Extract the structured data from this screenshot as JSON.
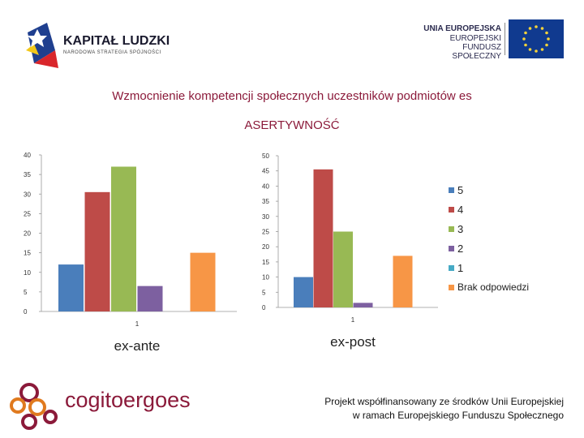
{
  "header": {
    "kapital_title": "KAPITAŁ LUDZKI",
    "kapital_sub": "NARODOWA STRATEGIA SPÓJNOŚCI",
    "ue_line1": "UNIA EUROPEJSKA",
    "ue_line2": "EUROPEJSKI",
    "ue_line3": "FUNDUSZ SPOŁECZNY"
  },
  "title": "Wzmocnienie kompetencji społecznych uczestników podmiotów es",
  "subtitle": "ASERTYWNOŚĆ",
  "chart_data": [
    {
      "type": "bar",
      "xlabel": "ex-ante",
      "categories": [
        "1"
      ],
      "ylim": [
        0,
        40
      ],
      "yticks": [
        0,
        5,
        10,
        15,
        20,
        25,
        30,
        35,
        40
      ],
      "series": [
        {
          "name": "5",
          "values": [
            12
          ],
          "color": "#4a7ebb"
        },
        {
          "name": "4",
          "values": [
            30.5
          ],
          "color": "#be4b48"
        },
        {
          "name": "3",
          "values": [
            37
          ],
          "color": "#98b954"
        },
        {
          "name": "2",
          "values": [
            6.5
          ],
          "color": "#7d60a0"
        },
        {
          "name": "1",
          "values": [
            0
          ],
          "color": "#46aac5"
        },
        {
          "name": "Brak odpowiedzi",
          "values": [
            15
          ],
          "color": "#f79646"
        }
      ]
    },
    {
      "type": "bar",
      "xlabel": "ex-post",
      "categories": [
        "1"
      ],
      "ylim": [
        0,
        50
      ],
      "yticks": [
        0,
        5,
        10,
        15,
        20,
        25,
        30,
        35,
        40,
        45,
        50
      ],
      "series": [
        {
          "name": "5",
          "values": [
            10
          ],
          "color": "#4a7ebb"
        },
        {
          "name": "4",
          "values": [
            45.5
          ],
          "color": "#be4b48"
        },
        {
          "name": "3",
          "values": [
            25
          ],
          "color": "#98b954"
        },
        {
          "name": "2",
          "values": [
            1.5
          ],
          "color": "#7d60a0"
        },
        {
          "name": "1",
          "values": [
            0
          ],
          "color": "#46aac5"
        },
        {
          "name": "Brak odpowiedzi",
          "values": [
            17
          ],
          "color": "#f79646"
        }
      ]
    }
  ],
  "legend": [
    {
      "label": "5",
      "color": "#4a7ebb"
    },
    {
      "label": "4",
      "color": "#be4b48"
    },
    {
      "label": "3",
      "color": "#98b954"
    },
    {
      "label": "2",
      "color": "#7d60a0"
    },
    {
      "label": "1",
      "color": "#46aac5"
    },
    {
      "label": "Brak odpowiedzi",
      "color": "#f79646"
    }
  ],
  "footer": {
    "logo_text": "cogitoergoes",
    "project_line1": "Projekt  współfinansowany ze środków Unii Europejskiej",
    "project_line2": "w ramach Europejskiego Funduszu Społecznego"
  }
}
